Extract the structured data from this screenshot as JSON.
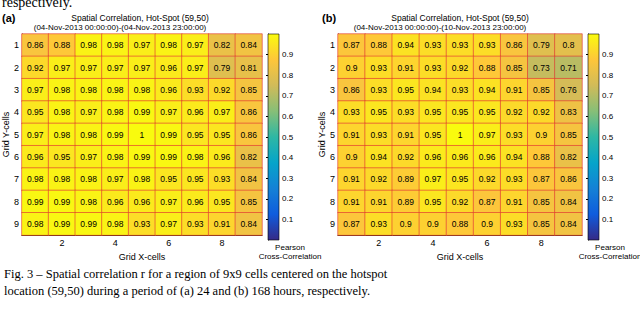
{
  "preceding_text": "respectively.",
  "caption": [
    "Fig. 3 – Spatial correlation r for a region of 9x9 cells centered on the hotspot",
    "location (59,50) during a period of (a) 24 and (b) 168 hours, respectively."
  ],
  "chart_data": [
    {
      "type": "heatmap",
      "panel": "(a)",
      "title": "Spatial Correlation, Hot-Spot (59,50)",
      "subtitle": "(04-Nov-2013 00:00:00)-(04-Nov-2013 23:00:00)",
      "x_label": "Grid X-cells",
      "y_label": "Grid Y-cells",
      "x": [
        1,
        2,
        3,
        4,
        5,
        6,
        7,
        8,
        9
      ],
      "y": [
        1,
        2,
        3,
        4,
        5,
        6,
        7,
        8,
        9
      ],
      "xticks": [
        2,
        4,
        6,
        8
      ],
      "yticks": [
        1,
        2,
        3,
        4,
        5,
        6,
        7,
        8,
        9
      ],
      "data_labels": true,
      "cells": [
        [
          0.86,
          0.88,
          0.98,
          0.98,
          0.97,
          0.98,
          0.97,
          0.82,
          0.84
        ],
        [
          0.92,
          0.97,
          0.97,
          0.97,
          0.97,
          0.96,
          0.97,
          0.79,
          0.81
        ],
        [
          0.97,
          0.98,
          0.98,
          0.98,
          0.98,
          0.96,
          0.93,
          0.92,
          0.85
        ],
        [
          0.95,
          0.98,
          0.97,
          0.98,
          0.99,
          0.97,
          0.96,
          0.97,
          0.86
        ],
        [
          0.97,
          0.98,
          0.98,
          0.99,
          1,
          0.99,
          0.95,
          0.95,
          0.86
        ],
        [
          0.96,
          0.95,
          0.97,
          0.98,
          0.99,
          0.99,
          0.98,
          0.96,
          0.82
        ],
        [
          0.98,
          0.98,
          0.98,
          0.97,
          0.98,
          0.95,
          0.95,
          0.93,
          0.84
        ],
        [
          0.99,
          0.99,
          0.98,
          0.96,
          0.96,
          0.97,
          0.96,
          0.95,
          0.85
        ],
        [
          0.98,
          0.99,
          0.99,
          0.98,
          0.93,
          0.97,
          0.93,
          0.91,
          0.84
        ]
      ],
      "colorbar": {
        "range": [
          0,
          1
        ],
        "ticks": [
          0.1,
          0.2,
          0.3,
          0.4,
          0.5,
          0.6,
          0.7,
          0.8,
          0.9
        ],
        "label": "Pearson Cross-Correlation"
      }
    },
    {
      "type": "heatmap",
      "panel": "(b)",
      "title": "Spatial Correlation, Hot-Spot (59,50)",
      "subtitle": "(04-Nov-2013 00:00:00)-(10-Nov-2013 23:00:00)",
      "x_label": "Grid X-cells",
      "y_label": "Grid Y-cells",
      "x": [
        1,
        2,
        3,
        4,
        5,
        6,
        7,
        8,
        9
      ],
      "y": [
        1,
        2,
        3,
        4,
        5,
        6,
        7,
        8,
        9
      ],
      "xticks": [
        2,
        4,
        6,
        8
      ],
      "yticks": [
        1,
        2,
        3,
        4,
        5,
        6,
        7,
        8,
        9
      ],
      "data_labels": true,
      "cells": [
        [
          0.87,
          0.88,
          0.94,
          0.93,
          0.93,
          0.93,
          0.86,
          0.79,
          0.8
        ],
        [
          0.9,
          0.93,
          0.91,
          0.93,
          0.92,
          0.88,
          0.85,
          0.73,
          0.71
        ],
        [
          0.86,
          0.93,
          0.95,
          0.94,
          0.93,
          0.94,
          0.91,
          0.85,
          0.76
        ],
        [
          0.93,
          0.95,
          0.93,
          0.95,
          0.95,
          0.95,
          0.92,
          0.92,
          0.83
        ],
        [
          0.91,
          0.93,
          0.91,
          0.95,
          1,
          0.97,
          0.93,
          0.9,
          0.85
        ],
        [
          0.9,
          0.94,
          0.92,
          0.96,
          0.96,
          0.96,
          0.94,
          0.88,
          0.82
        ],
        [
          0.91,
          0.92,
          0.89,
          0.97,
          0.95,
          0.92,
          0.93,
          0.87,
          0.86
        ],
        [
          0.91,
          0.91,
          0.89,
          0.95,
          0.92,
          0.87,
          0.91,
          0.85,
          0.84
        ],
        [
          0.87,
          0.93,
          0.9,
          0.9,
          0.88,
          0.9,
          0.93,
          0.85,
          0.84
        ]
      ],
      "colorbar": {
        "range": [
          0,
          1
        ],
        "ticks": [
          0.1,
          0.2,
          0.3,
          0.4,
          0.5,
          0.6,
          0.7,
          0.8,
          0.9
        ],
        "label": "Pearson Cross-Correlation"
      }
    }
  ]
}
